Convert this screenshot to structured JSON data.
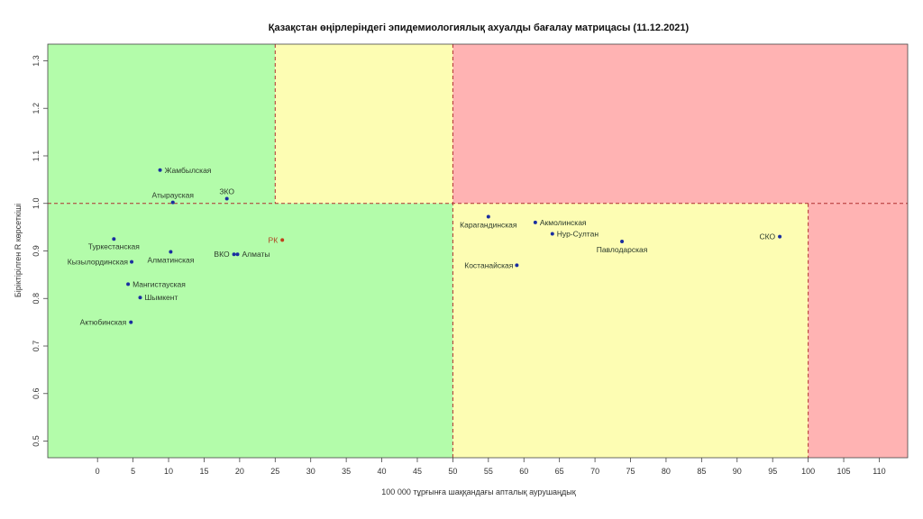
{
  "chart_data": {
    "type": "scatter",
    "title": "Қазақстан өңірлеріндегі эпидемиологиялық ахуалды бағалау матрицасы  (11.12.2021)",
    "xlabel": "100 000 тұрғынға шаққандағы апталық аурушаңдық",
    "ylabel": "Біріктірілген R көрсеткіші",
    "xlim": [
      -7,
      114
    ],
    "ylim": [
      0.465,
      1.335
    ],
    "x_ticks": [
      0,
      5,
      10,
      15,
      20,
      25,
      30,
      35,
      40,
      45,
      50,
      55,
      60,
      65,
      70,
      75,
      80,
      85,
      90,
      95,
      100,
      105,
      110
    ],
    "y_ticks": [
      0.5,
      0.6,
      0.7,
      0.8,
      0.9,
      1.0,
      1.1,
      1.2,
      1.3
    ],
    "thresholds": {
      "x": [
        25,
        50,
        100
      ],
      "y": 1.0
    },
    "zone_colors": {
      "green": "#b3fcaa",
      "yellow": "#fdfdb3",
      "red": "#ffb3b3",
      "line": "#b03030",
      "point": "#1a2ea0",
      "rk_point": "#c0401a"
    },
    "points": [
      {
        "name": "Жамбылская",
        "x": 8.8,
        "y": 1.07
      },
      {
        "name": "Атырауская",
        "x": 10.6,
        "y": 1.002
      },
      {
        "name": "ЗКО",
        "x": 18.2,
        "y": 1.01
      },
      {
        "name": "Туркестанская",
        "x": 2.3,
        "y": 0.925
      },
      {
        "name": "Кызылординская",
        "x": 4.8,
        "y": 0.877
      },
      {
        "name": "Алматинская",
        "x": 10.3,
        "y": 0.898
      },
      {
        "name": "ВКО",
        "x": 19.2,
        "y": 0.893
      },
      {
        "name": "Алматы",
        "x": 19.7,
        "y": 0.893
      },
      {
        "name": "Мангистауская",
        "x": 4.3,
        "y": 0.83
      },
      {
        "name": "Шымкент",
        "x": 6.0,
        "y": 0.802
      },
      {
        "name": "Актюбинская",
        "x": 4.7,
        "y": 0.75
      },
      {
        "name": "РК",
        "x": 26.0,
        "y": 0.923,
        "highlight": true
      },
      {
        "name": "Карагандинская",
        "x": 55.0,
        "y": 0.972
      },
      {
        "name": "Акмолинская",
        "x": 61.6,
        "y": 0.96
      },
      {
        "name": "Нур-Султан",
        "x": 64.0,
        "y": 0.936
      },
      {
        "name": "Павлодарская",
        "x": 73.8,
        "y": 0.92
      },
      {
        "name": "Костанайская",
        "x": 59.0,
        "y": 0.87
      },
      {
        "name": "СКО",
        "x": 96.0,
        "y": 0.93
      }
    ]
  }
}
